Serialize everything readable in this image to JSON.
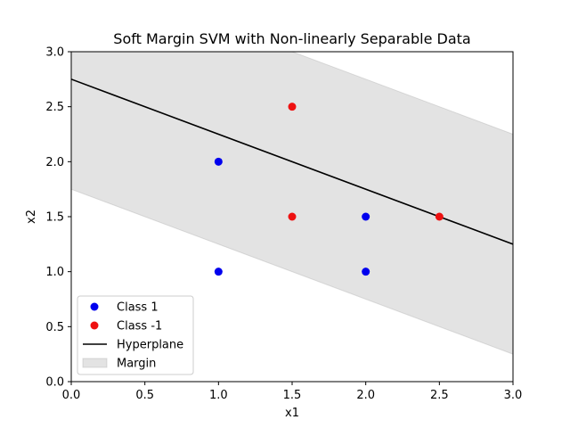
{
  "chart_data": {
    "type": "scatter",
    "title": "Soft Margin SVM with Non-linearly Separable Data",
    "xlabel": "x1",
    "ylabel": "x2",
    "xlim": [
      0,
      3
    ],
    "ylim": [
      0,
      3
    ],
    "xticks": [
      "0.0",
      "0.5",
      "1.0",
      "1.5",
      "2.0",
      "2.5",
      "3.0"
    ],
    "yticks": [
      "0.0",
      "0.5",
      "1.0",
      "1.5",
      "2.0",
      "2.5",
      "3.0"
    ],
    "grid": false,
    "legend_position": "lower-left",
    "series": [
      {
        "name": "Class 1",
        "kind": "points",
        "color": "#0000ee",
        "points": [
          [
            1.0,
            2.0
          ],
          [
            1.0,
            1.0
          ],
          [
            2.0,
            1.5
          ],
          [
            2.0,
            1.0
          ]
        ]
      },
      {
        "name": "Class -1",
        "kind": "points",
        "color": "#ee1111",
        "points": [
          [
            1.5,
            2.5
          ],
          [
            1.5,
            1.5
          ],
          [
            2.5,
            1.5
          ]
        ]
      },
      {
        "name": "Hyperplane",
        "kind": "line",
        "color": "#000000",
        "points": [
          [
            0.0,
            2.75
          ],
          [
            3.0,
            1.25
          ]
        ]
      },
      {
        "name": "Margin",
        "kind": "band",
        "color": "#b0b0b0",
        "upper": [
          [
            0.0,
            3.75
          ],
          [
            3.0,
            2.25
          ]
        ],
        "lower": [
          [
            0.0,
            1.75
          ],
          [
            3.0,
            0.25
          ]
        ]
      }
    ]
  }
}
